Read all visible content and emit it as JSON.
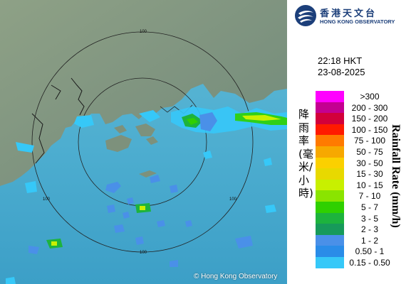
{
  "map": {
    "copyright": "© Hong Kong Observatory",
    "range_ring_labels": [
      "100",
      "100",
      "100",
      "100"
    ]
  },
  "header": {
    "logo_zh": "香港天文台",
    "logo_en": "HONG KONG OBSERVATORY"
  },
  "timestamp": {
    "time": "22:18 HKT",
    "date": "23-08-2025"
  },
  "legend": {
    "title_zh": "降雨率(毫米/小時)",
    "title_en": "Rainfall Rate (mm/h)",
    "items": [
      {
        "range": ">300",
        "color": "#ff00ff"
      },
      {
        "range": "200 - 300",
        "color": "#c40091"
      },
      {
        "range": "150 - 200",
        "color": "#d2003b"
      },
      {
        "range": "100 - 150",
        "color": "#ff1a00"
      },
      {
        "range": "75 - 100",
        "color": "#ff7a00"
      },
      {
        "range": "50 - 75",
        "color": "#f7a800"
      },
      {
        "range": "30 - 50",
        "color": "#fbd000"
      },
      {
        "range": "15 - 30",
        "color": "#e8d900"
      },
      {
        "range": "10 - 15",
        "color": "#c8f000"
      },
      {
        "range": "7 - 10",
        "color": "#8ae400"
      },
      {
        "range": "5 - 7",
        "color": "#2fd000"
      },
      {
        "range": "3 - 5",
        "color": "#1db33d"
      },
      {
        "range": "2 - 3",
        "color": "#179a5a"
      },
      {
        "range": "1 - 2",
        "color": "#4a90e8"
      },
      {
        "range": "0.50 - 1",
        "color": "#2a8ce8"
      },
      {
        "range": "0.15 - 0.50",
        "color": "#36c8f8"
      }
    ]
  }
}
